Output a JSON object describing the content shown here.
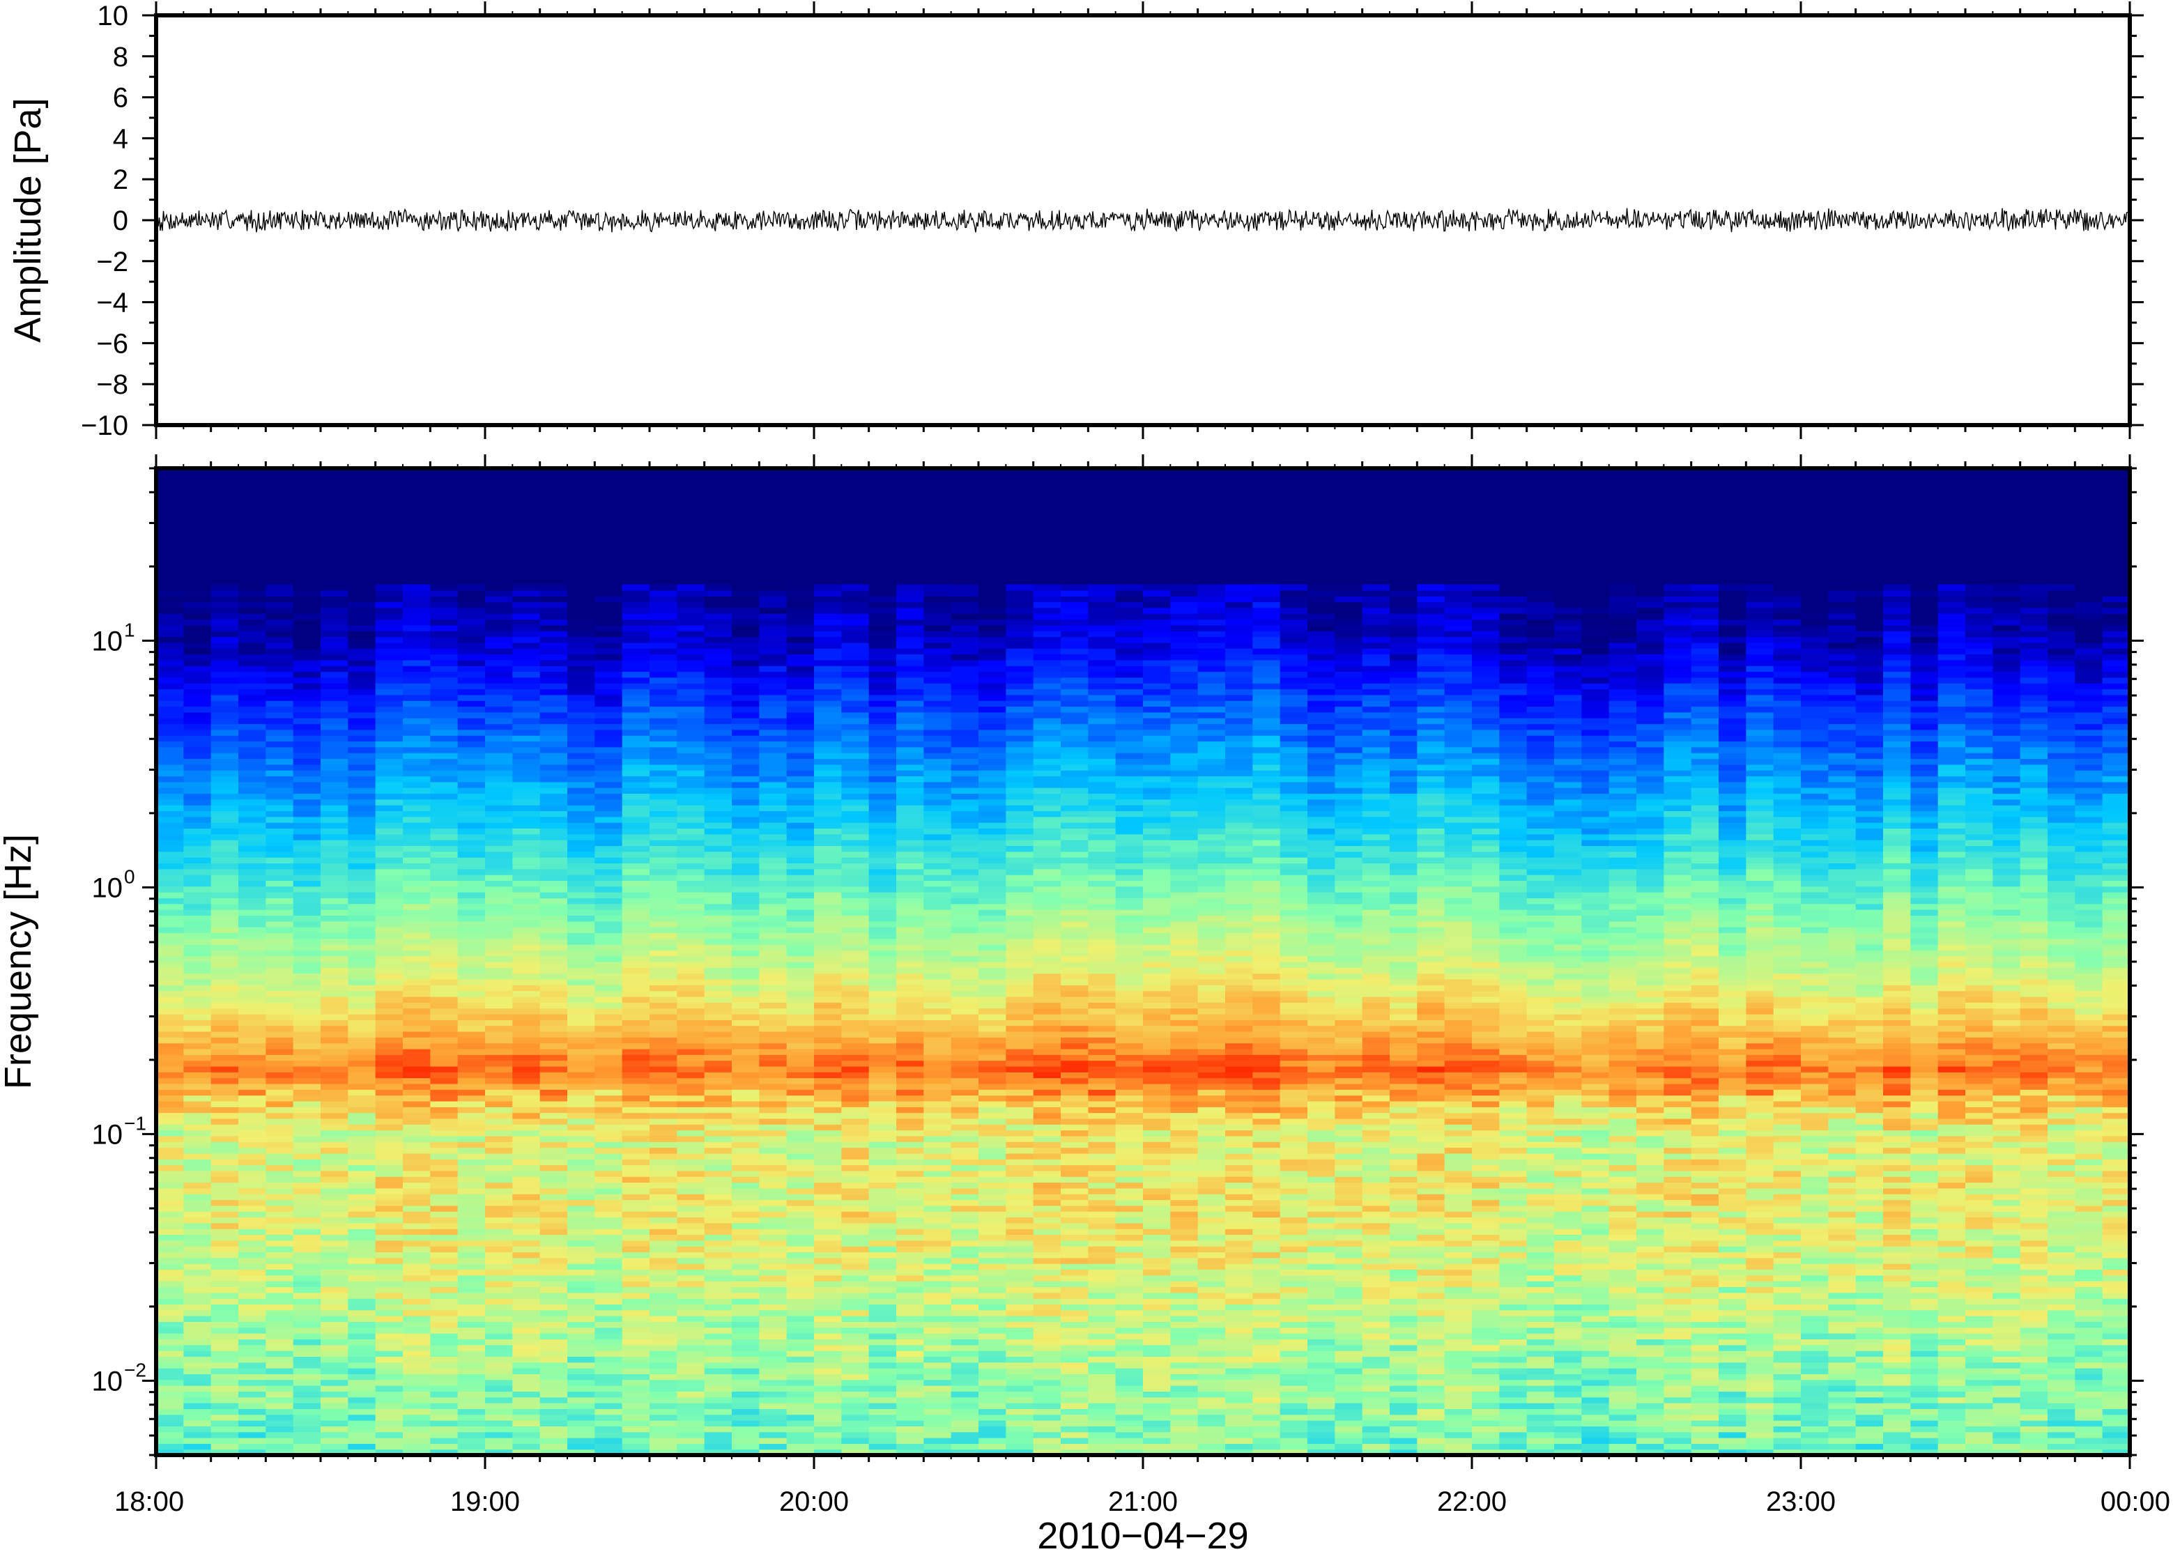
{
  "chart_data": [
    {
      "type": "line",
      "ylabel": "Amplitude [Pa]",
      "ylim": [
        -10,
        10
      ],
      "yticks": [
        10,
        8,
        6,
        4,
        2,
        0,
        -2,
        -4,
        -6,
        -8,
        -10
      ],
      "ytick_labels": [
        "10",
        "8",
        "6",
        "4",
        "2",
        "0",
        "−2",
        "−4",
        "−6",
        "−8",
        "−10"
      ],
      "xlim": [
        "18:00",
        "00:00"
      ],
      "grid": false,
      "series": [
        {
          "approx_mean": 0,
          "approx_peak_amplitude": 0.6,
          "color": "#000000"
        }
      ]
    },
    {
      "type": "heatmap",
      "ylabel": "Frequency [Hz]",
      "yscale": "log",
      "ylim": [
        0.005,
        50
      ],
      "yticks": [
        10,
        1,
        0.1,
        0.01
      ],
      "ytick_labels": [
        {
          "base": "10",
          "exp": "1"
        },
        {
          "base": "10",
          "exp": "0"
        },
        {
          "base": "10",
          "exp": "−1"
        },
        {
          "base": "10",
          "exp": "−2"
        }
      ],
      "xlabel": "2010−04−29",
      "xticks": [
        "18:00",
        "19:00",
        "20:00",
        "21:00",
        "22:00",
        "23:00",
        "00:00"
      ],
      "xlim": [
        "18:00",
        "00:00"
      ],
      "colormap": "jet",
      "profile": [
        {
          "freq_hz": 50,
          "level": 0.0
        },
        {
          "freq_hz": 20,
          "level": 0.0
        },
        {
          "freq_hz": 10,
          "level": 0.05
        },
        {
          "freq_hz": 6,
          "level": 0.15
        },
        {
          "freq_hz": 3,
          "level": 0.27
        },
        {
          "freq_hz": 1.5,
          "level": 0.38
        },
        {
          "freq_hz": 0.8,
          "level": 0.5
        },
        {
          "freq_hz": 0.4,
          "level": 0.62
        },
        {
          "freq_hz": 0.25,
          "level": 0.74
        },
        {
          "freq_hz": 0.18,
          "level": 0.82
        },
        {
          "freq_hz": 0.14,
          "level": 0.72
        },
        {
          "freq_hz": 0.1,
          "level": 0.62
        },
        {
          "freq_hz": 0.05,
          "level": 0.64
        },
        {
          "freq_hz": 0.02,
          "level": 0.57
        },
        {
          "freq_hz": 0.01,
          "level": 0.52
        },
        {
          "freq_hz": 0.005,
          "level": 0.48
        }
      ]
    }
  ]
}
